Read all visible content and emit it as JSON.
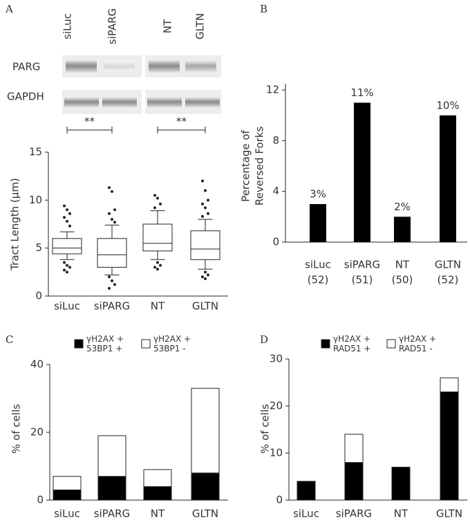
{
  "chart_data": [
    {
      "type": "box",
      "panel": "A",
      "ylabel": "Tract Length (μm)",
      "blot": {
        "lanes": [
          "siLuc",
          "siPARG",
          "NT",
          "GLTN"
        ],
        "rows": [
          "PARG",
          "GAPDH"
        ]
      },
      "categories": [
        "siLuc",
        "siPARG",
        "NT",
        "GLTN"
      ],
      "boxes": [
        {
          "whisker_low": 3.8,
          "q1": 4.4,
          "median": 5.0,
          "q3": 6.0,
          "whisker_high": 6.7,
          "outliers": [
            9.4,
            9.0,
            8.6,
            8.2,
            7.8,
            7.3,
            3.5,
            3.2,
            3.0,
            2.7,
            2.5
          ]
        },
        {
          "whisker_low": 2.2,
          "q1": 3.0,
          "median": 4.3,
          "q3": 6.0,
          "whisker_high": 7.4,
          "outliers": [
            11.3,
            10.9,
            9.0,
            8.6,
            8.0,
            7.7,
            2.0,
            1.6,
            1.2,
            0.8
          ]
        },
        {
          "whisker_low": 3.8,
          "q1": 4.7,
          "median": 5.5,
          "q3": 7.5,
          "whisker_high": 8.9,
          "outliers": [
            10.5,
            10.2,
            9.6,
            9.2,
            3.5,
            3.2,
            3.0,
            2.8
          ]
        },
        {
          "whisker_low": 2.8,
          "q1": 3.8,
          "median": 4.9,
          "q3": 6.8,
          "whisker_high": 8.0,
          "outliers": [
            12.0,
            11.0,
            10.0,
            9.6,
            9.2,
            8.6,
            8.3,
            2.5,
            2.2,
            2.0,
            1.8
          ]
        }
      ],
      "annotations": [
        "**",
        "**"
      ],
      "ylim": [
        0,
        15
      ],
      "yticks": [
        0,
        5,
        10,
        15
      ]
    },
    {
      "type": "bar",
      "panel": "B",
      "ylabel": [
        "Percentage of",
        "Reversed Forks"
      ],
      "categories": [
        "siLuc",
        "siPARG",
        "NT",
        "GLTN"
      ],
      "category_counts": [
        "(52)",
        "(51)",
        "(50)",
        "(52)"
      ],
      "values": [
        3,
        11,
        2,
        10
      ],
      "value_labels": [
        "3%",
        "11%",
        "2%",
        "10%"
      ],
      "color": "#000000",
      "ylim": [
        0,
        12.5
      ],
      "yticks": [
        0,
        4,
        8,
        12
      ]
    },
    {
      "type": "stacked_bar",
      "panel": "C",
      "ylabel": "% of cells",
      "categories": [
        "siLuc",
        "siPARG",
        "NT",
        "GLTN"
      ],
      "series": [
        {
          "name": "γH2AX + 53BP1 +",
          "color": "#000000",
          "values": [
            3,
            7,
            4,
            8
          ]
        },
        {
          "name": "γH2AX + 53BP1 -",
          "color": "#ffffff",
          "values": [
            4,
            12,
            5,
            25
          ]
        }
      ],
      "ylim": [
        0,
        40
      ],
      "yticks": [
        0,
        20,
        40
      ]
    },
    {
      "type": "stacked_bar",
      "panel": "D",
      "ylabel": "% of cells",
      "categories": [
        "siLuc",
        "siPARG",
        "NT",
        "GLTN"
      ],
      "series": [
        {
          "name": "γH2AX + RAD51 +",
          "color": "#000000",
          "values": [
            4,
            8,
            7,
            23
          ]
        },
        {
          "name": "γH2AX + RAD51 -",
          "color": "#ffffff",
          "values": [
            0,
            6,
            0,
            3
          ]
        }
      ],
      "ylim": [
        0,
        30
      ],
      "yticks": [
        0,
        10,
        20,
        30
      ]
    }
  ]
}
